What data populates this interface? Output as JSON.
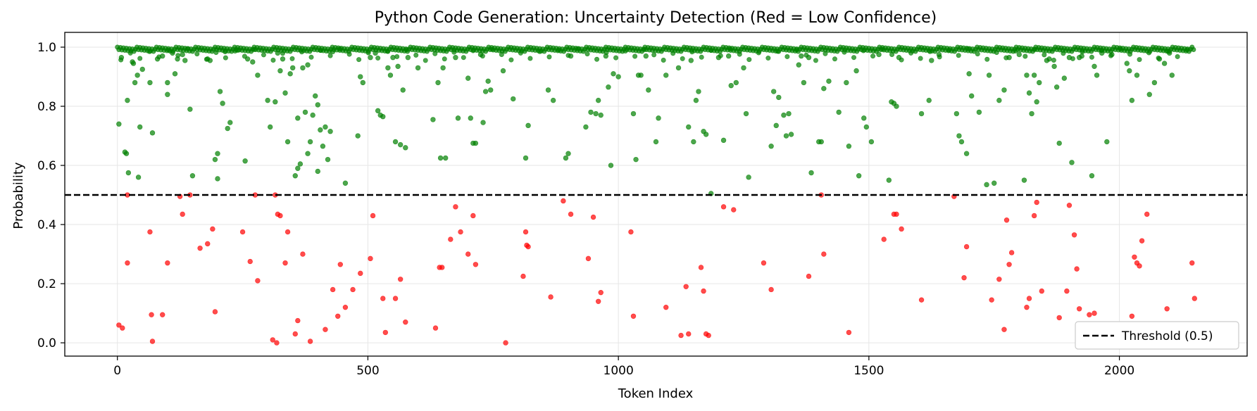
{
  "chart_data": {
    "type": "scatter",
    "title": "Python Code Generation: Uncertainty Detection (Red = Low Confidence)",
    "xlabel": "Token Index",
    "ylabel": "Probability",
    "xlim": [
      -105,
      2255
    ],
    "ylim": [
      -0.045,
      1.05
    ],
    "x_ticks": [
      0,
      500,
      1000,
      1500,
      2000
    ],
    "y_ticks": [
      0.0,
      0.2,
      0.4,
      0.6,
      0.8,
      1.0
    ],
    "x_tick_labels": [
      "0",
      "500",
      "1000",
      "1500",
      "2000"
    ],
    "y_tick_labels": [
      "0.0",
      "0.2",
      "0.4",
      "0.6",
      "0.8",
      "1.0"
    ],
    "grid": true,
    "threshold": {
      "value": 0.5,
      "label": "Threshold (0.5)",
      "style": "dashed",
      "color": "#000000"
    },
    "legend": {
      "placement": "bottom-right",
      "entries": [
        "Threshold (0.5)"
      ]
    },
    "colors": {
      "high_confidence": "#008000",
      "low_confidence": "#ff0000"
    },
    "token_count": 2150,
    "high_confidence_points": [
      [
        3,
        0.74
      ],
      [
        8,
        0.965
      ],
      [
        15,
        0.645
      ],
      [
        18,
        0.64
      ],
      [
        20,
        0.82
      ],
      [
        22,
        0.575
      ],
      [
        30,
        0.95
      ],
      [
        32,
        0.945
      ],
      [
        35,
        0.88
      ],
      [
        40,
        0.905
      ],
      [
        42,
        0.56
      ],
      [
        45,
        0.73
      ],
      [
        50,
        0.925
      ],
      [
        65,
        0.88
      ],
      [
        70,
        0.71
      ],
      [
        80,
        0.96
      ],
      [
        90,
        0.97
      ],
      [
        100,
        0.84
      ],
      [
        100,
        0.88
      ],
      [
        110,
        0.98
      ],
      [
        115,
        0.91
      ],
      [
        120,
        0.96
      ],
      [
        130,
        0.975
      ],
      [
        135,
        0.955
      ],
      [
        145,
        0.79
      ],
      [
        150,
        0.565
      ],
      [
        180,
        0.96
      ],
      [
        185,
        0.955
      ],
      [
        195,
        0.62
      ],
      [
        200,
        0.64
      ],
      [
        200,
        0.555
      ],
      [
        205,
        0.85
      ],
      [
        210,
        0.81
      ],
      [
        215,
        0.985
      ],
      [
        220,
        0.725
      ],
      [
        225,
        0.745
      ],
      [
        240,
        0.99
      ],
      [
        255,
        0.615
      ],
      [
        260,
        0.96
      ],
      [
        270,
        0.95
      ],
      [
        280,
        0.905
      ],
      [
        300,
        0.82
      ],
      [
        305,
        0.73
      ],
      [
        315,
        0.815
      ],
      [
        320,
        0.98
      ],
      [
        325,
        0.92
      ],
      [
        330,
        0.96
      ],
      [
        335,
        0.845
      ],
      [
        340,
        0.68
      ],
      [
        345,
        0.91
      ],
      [
        350,
        0.93
      ],
      [
        355,
        0.565
      ],
      [
        360,
        0.76
      ],
      [
        360,
        0.59
      ],
      [
        365,
        0.605
      ],
      [
        370,
        0.93
      ],
      [
        375,
        0.78
      ],
      [
        380,
        0.64
      ],
      [
        380,
        0.94
      ],
      [
        385,
        0.68
      ],
      [
        390,
        0.77
      ],
      [
        395,
        0.835
      ],
      [
        400,
        0.805
      ],
      [
        400,
        0.58
      ],
      [
        405,
        0.72
      ],
      [
        410,
        0.665
      ],
      [
        415,
        0.73
      ],
      [
        420,
        0.62
      ],
      [
        425,
        0.715
      ],
      [
        430,
        0.985
      ],
      [
        455,
        0.54
      ],
      [
        480,
        0.7
      ],
      [
        485,
        0.9
      ],
      [
        490,
        0.88
      ],
      [
        505,
        0.965
      ],
      [
        515,
        0.98
      ],
      [
        520,
        0.785
      ],
      [
        525,
        0.77
      ],
      [
        530,
        0.765
      ],
      [
        540,
        0.93
      ],
      [
        545,
        0.905
      ],
      [
        550,
        0.965
      ],
      [
        555,
        0.68
      ],
      [
        560,
        0.935
      ],
      [
        565,
        0.67
      ],
      [
        570,
        0.855
      ],
      [
        575,
        0.66
      ],
      [
        580,
        0.965
      ],
      [
        600,
        0.93
      ],
      [
        630,
        0.755
      ],
      [
        640,
        0.88
      ],
      [
        645,
        0.625
      ],
      [
        650,
        0.93
      ],
      [
        655,
        0.625
      ],
      [
        675,
        0.965
      ],
      [
        680,
        0.76
      ],
      [
        700,
        0.895
      ],
      [
        705,
        0.76
      ],
      [
        710,
        0.675
      ],
      [
        715,
        0.675
      ],
      [
        725,
        0.975
      ],
      [
        730,
        0.745
      ],
      [
        735,
        0.85
      ],
      [
        740,
        0.885
      ],
      [
        745,
        0.855
      ],
      [
        770,
        0.92
      ],
      [
        790,
        0.825
      ],
      [
        815,
        0.625
      ],
      [
        820,
        0.735
      ],
      [
        860,
        0.855
      ],
      [
        870,
        0.82
      ],
      [
        895,
        0.625
      ],
      [
        900,
        0.64
      ],
      [
        905,
        0.97
      ],
      [
        935,
        0.73
      ],
      [
        945,
        0.78
      ],
      [
        955,
        0.775
      ],
      [
        960,
        0.82
      ],
      [
        965,
        0.77
      ],
      [
        975,
        0.97
      ],
      [
        980,
        0.865
      ],
      [
        985,
        0.6
      ],
      [
        990,
        0.91
      ],
      [
        1000,
        0.9
      ],
      [
        1030,
        0.775
      ],
      [
        1035,
        0.62
      ],
      [
        1040,
        0.905
      ],
      [
        1045,
        0.905
      ],
      [
        1055,
        0.97
      ],
      [
        1060,
        0.855
      ],
      [
        1075,
        0.68
      ],
      [
        1080,
        0.76
      ],
      [
        1095,
        0.905
      ],
      [
        1120,
        0.93
      ],
      [
        1140,
        0.73
      ],
      [
        1145,
        0.955
      ],
      [
        1150,
        0.68
      ],
      [
        1155,
        0.82
      ],
      [
        1160,
        0.85
      ],
      [
        1170,
        0.715
      ],
      [
        1175,
        0.705
      ],
      [
        1185,
        0.505
      ],
      [
        1200,
        0.965
      ],
      [
        1210,
        0.685
      ],
      [
        1220,
        0.97
      ],
      [
        1225,
        0.87
      ],
      [
        1235,
        0.88
      ],
      [
        1250,
        0.93
      ],
      [
        1255,
        0.775
      ],
      [
        1260,
        0.56
      ],
      [
        1305,
        0.665
      ],
      [
        1310,
        0.85
      ],
      [
        1315,
        0.735
      ],
      [
        1320,
        0.83
      ],
      [
        1330,
        0.77
      ],
      [
        1335,
        0.7
      ],
      [
        1340,
        0.775
      ],
      [
        1345,
        0.705
      ],
      [
        1360,
        0.94
      ],
      [
        1365,
        0.97
      ],
      [
        1370,
        0.88
      ],
      [
        1380,
        0.965
      ],
      [
        1385,
        0.575
      ],
      [
        1400,
        0.68
      ],
      [
        1405,
        0.68
      ],
      [
        1410,
        0.86
      ],
      [
        1420,
        0.885
      ],
      [
        1440,
        0.78
      ],
      [
        1455,
        0.88
      ],
      [
        1460,
        0.665
      ],
      [
        1475,
        0.92
      ],
      [
        1480,
        0.565
      ],
      [
        1490,
        0.76
      ],
      [
        1495,
        0.73
      ],
      [
        1505,
        0.68
      ],
      [
        1520,
        0.975
      ],
      [
        1540,
        0.55
      ],
      [
        1545,
        0.815
      ],
      [
        1550,
        0.81
      ],
      [
        1555,
        0.8
      ],
      [
        1560,
        0.965
      ],
      [
        1605,
        0.775
      ],
      [
        1620,
        0.82
      ],
      [
        1625,
        0.955
      ],
      [
        1640,
        0.975
      ],
      [
        1675,
        0.775
      ],
      [
        1680,
        0.7
      ],
      [
        1685,
        0.68
      ],
      [
        1695,
        0.64
      ],
      [
        1700,
        0.91
      ],
      [
        1705,
        0.835
      ],
      [
        1720,
        0.78
      ],
      [
        1735,
        0.535
      ],
      [
        1740,
        0.905
      ],
      [
        1750,
        0.54
      ],
      [
        1760,
        0.82
      ],
      [
        1770,
        0.855
      ],
      [
        1780,
        0.965
      ],
      [
        1800,
        0.975
      ],
      [
        1810,
        0.55
      ],
      [
        1815,
        0.905
      ],
      [
        1820,
        0.845
      ],
      [
        1825,
        0.775
      ],
      [
        1830,
        0.905
      ],
      [
        1835,
        0.815
      ],
      [
        1840,
        0.88
      ],
      [
        1855,
        0.955
      ],
      [
        1860,
        0.96
      ],
      [
        1870,
        0.935
      ],
      [
        1875,
        0.865
      ],
      [
        1880,
        0.675
      ],
      [
        1890,
        0.895
      ],
      [
        1900,
        0.965
      ],
      [
        1905,
        0.61
      ],
      [
        1920,
        0.965
      ],
      [
        1925,
        0.97
      ],
      [
        1945,
        0.565
      ],
      [
        1950,
        0.935
      ],
      [
        1955,
        0.905
      ],
      [
        1965,
        0.98
      ],
      [
        1975,
        0.68
      ],
      [
        1985,
        0.975
      ],
      [
        2015,
        0.945
      ],
      [
        2020,
        0.92
      ],
      [
        2025,
        0.82
      ],
      [
        2035,
        0.905
      ],
      [
        2060,
        0.84
      ],
      [
        2070,
        0.88
      ],
      [
        2080,
        0.96
      ],
      [
        2090,
        0.945
      ],
      [
        2100,
        0.98
      ],
      [
        2105,
        0.905
      ]
    ],
    "low_confidence_points": [
      [
        3,
        0.06
      ],
      [
        10,
        0.05
      ],
      [
        20,
        0.27
      ],
      [
        20,
        0.5
      ],
      [
        65,
        0.375
      ],
      [
        68,
        0.095
      ],
      [
        70,
        0.005
      ],
      [
        90,
        0.095
      ],
      [
        100,
        0.27
      ],
      [
        125,
        0.495
      ],
      [
        130,
        0.435
      ],
      [
        145,
        0.5
      ],
      [
        165,
        0.32
      ],
      [
        180,
        0.335
      ],
      [
        190,
        0.385
      ],
      [
        195,
        0.105
      ],
      [
        250,
        0.375
      ],
      [
        265,
        0.275
      ],
      [
        275,
        0.5
      ],
      [
        280,
        0.21
      ],
      [
        310,
        0.01
      ],
      [
        315,
        0.5
      ],
      [
        318,
        0.0
      ],
      [
        320,
        0.435
      ],
      [
        325,
        0.43
      ],
      [
        335,
        0.27
      ],
      [
        340,
        0.375
      ],
      [
        355,
        0.03
      ],
      [
        360,
        0.075
      ],
      [
        370,
        0.3
      ],
      [
        385,
        0.005
      ],
      [
        415,
        0.045
      ],
      [
        430,
        0.18
      ],
      [
        440,
        0.09
      ],
      [
        445,
        0.265
      ],
      [
        455,
        0.12
      ],
      [
        470,
        0.18
      ],
      [
        485,
        0.235
      ],
      [
        505,
        0.285
      ],
      [
        510,
        0.43
      ],
      [
        530,
        0.15
      ],
      [
        535,
        0.035
      ],
      [
        555,
        0.15
      ],
      [
        565,
        0.215
      ],
      [
        575,
        0.07
      ],
      [
        635,
        0.05
      ],
      [
        643,
        0.255
      ],
      [
        648,
        0.255
      ],
      [
        665,
        0.35
      ],
      [
        675,
        0.46
      ],
      [
        685,
        0.375
      ],
      [
        700,
        0.3
      ],
      [
        710,
        0.43
      ],
      [
        715,
        0.265
      ],
      [
        775,
        0.0
      ],
      [
        810,
        0.225
      ],
      [
        815,
        0.375
      ],
      [
        817,
        0.33
      ],
      [
        820,
        0.325
      ],
      [
        865,
        0.155
      ],
      [
        890,
        0.48
      ],
      [
        905,
        0.435
      ],
      [
        940,
        0.285
      ],
      [
        950,
        0.425
      ],
      [
        960,
        0.14
      ],
      [
        965,
        0.17
      ],
      [
        1025,
        0.375
      ],
      [
        1030,
        0.09
      ],
      [
        1095,
        0.12
      ],
      [
        1125,
        0.025
      ],
      [
        1135,
        0.19
      ],
      [
        1140,
        0.03
      ],
      [
        1165,
        0.255
      ],
      [
        1170,
        0.175
      ],
      [
        1175,
        0.03
      ],
      [
        1180,
        0.025
      ],
      [
        1210,
        0.46
      ],
      [
        1230,
        0.45
      ],
      [
        1290,
        0.27
      ],
      [
        1305,
        0.18
      ],
      [
        1380,
        0.225
      ],
      [
        1405,
        0.5
      ],
      [
        1410,
        0.3
      ],
      [
        1460,
        0.035
      ],
      [
        1530,
        0.35
      ],
      [
        1550,
        0.435
      ],
      [
        1555,
        0.435
      ],
      [
        1565,
        0.385
      ],
      [
        1605,
        0.145
      ],
      [
        1670,
        0.495
      ],
      [
        1690,
        0.22
      ],
      [
        1695,
        0.325
      ],
      [
        1745,
        0.145
      ],
      [
        1760,
        0.215
      ],
      [
        1770,
        0.045
      ],
      [
        1775,
        0.415
      ],
      [
        1780,
        0.265
      ],
      [
        1785,
        0.305
      ],
      [
        1815,
        0.12
      ],
      [
        1820,
        0.15
      ],
      [
        1830,
        0.43
      ],
      [
        1835,
        0.475
      ],
      [
        1845,
        0.175
      ],
      [
        1880,
        0.085
      ],
      [
        1895,
        0.175
      ],
      [
        1900,
        0.465
      ],
      [
        1910,
        0.365
      ],
      [
        1915,
        0.25
      ],
      [
        1920,
        0.115
      ],
      [
        1940,
        0.095
      ],
      [
        1950,
        0.1
      ],
      [
        2025,
        0.09
      ],
      [
        2030,
        0.29
      ],
      [
        2035,
        0.27
      ],
      [
        2040,
        0.26
      ],
      [
        2045,
        0.345
      ],
      [
        2055,
        0.435
      ],
      [
        2095,
        0.115
      ],
      [
        2145,
        0.27
      ],
      [
        2150,
        0.15
      ]
    ]
  }
}
